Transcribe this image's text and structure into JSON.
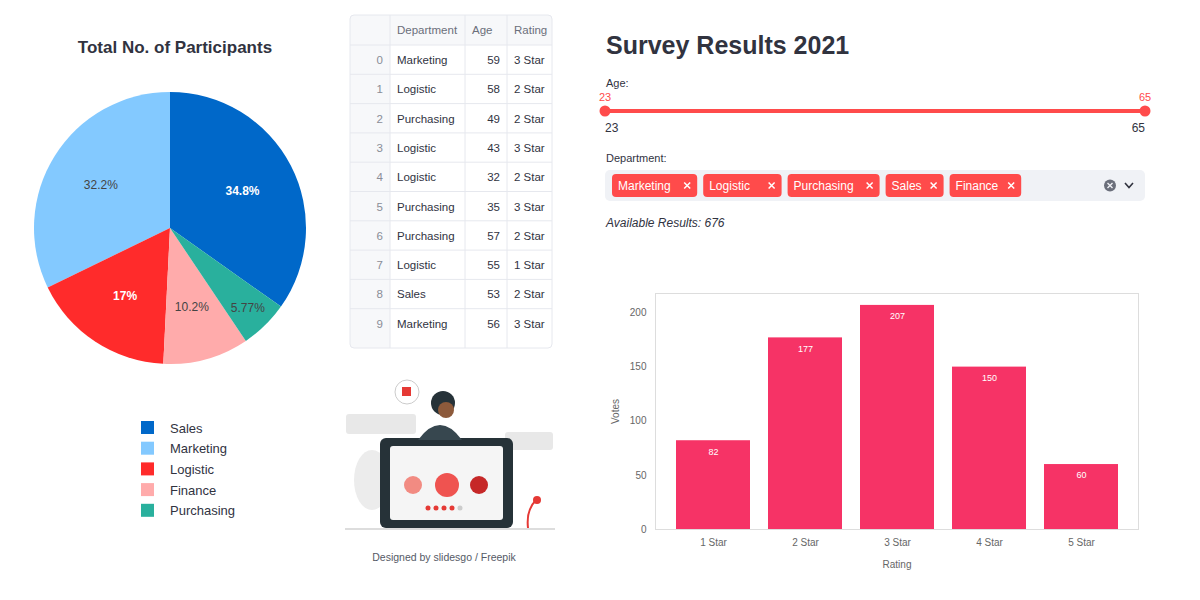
{
  "chart_data": [
    {
      "type": "pie",
      "title": "Total No. of Participants",
      "categories": [
        "Sales",
        "Marketing",
        "Logistic",
        "Finance",
        "Purchasing"
      ],
      "values": [
        34.8,
        32.2,
        17,
        10.2,
        5.77
      ],
      "value_labels": [
        "34.8%",
        "32.2%",
        "17%",
        "10.2%",
        "5.77%"
      ],
      "colors": [
        "#0068c9",
        "#83c9ff",
        "#ff2b2b",
        "#ffabab",
        "#29b09d"
      ],
      "data_labels": true,
      "legend": "bottom"
    },
    {
      "type": "bar",
      "categories": [
        "1 Star",
        "2 Star",
        "3 Star",
        "4 Star",
        "5 Star"
      ],
      "values": [
        82,
        177,
        207,
        150,
        60
      ],
      "color": "#f63366",
      "x_label": "Rating",
      "y_label": "Votes",
      "ylim": [
        0,
        218
      ],
      "yticks": [
        0,
        50,
        100,
        150,
        200
      ],
      "grid": false,
      "data_labels": true
    }
  ],
  "table": {
    "columns": [
      "Department",
      "Age",
      "Rating"
    ],
    "index": [
      0,
      1,
      2,
      3,
      4,
      5,
      6,
      7,
      8,
      9
    ],
    "rows": [
      [
        "Marketing",
        59,
        "3 Star"
      ],
      [
        "Logistic",
        58,
        "2 Star"
      ],
      [
        "Purchasing",
        49,
        "2 Star"
      ],
      [
        "Logistic",
        43,
        "3 Star"
      ],
      [
        "Logistic",
        32,
        "2 Star"
      ],
      [
        "Purchasing",
        35,
        "3 Star"
      ],
      [
        "Purchasing",
        57,
        "2 Star"
      ],
      [
        "Logistic",
        55,
        "1 Star"
      ],
      [
        "Sales",
        53,
        "2 Star"
      ],
      [
        "Marketing",
        56,
        "3 Star"
      ]
    ]
  },
  "header": {
    "title": "Survey Results 2021"
  },
  "age_slider": {
    "label": "Age:",
    "min": 23,
    "max": 65,
    "value": [
      23,
      65
    ]
  },
  "department_filter": {
    "label": "Department:",
    "selected": [
      "Marketing",
      "Logistic",
      "Purchasing",
      "Sales",
      "Finance"
    ]
  },
  "status": "Available Results: 676",
  "illustration": {
    "caption": "Designed by slidesgo / Freepik"
  }
}
